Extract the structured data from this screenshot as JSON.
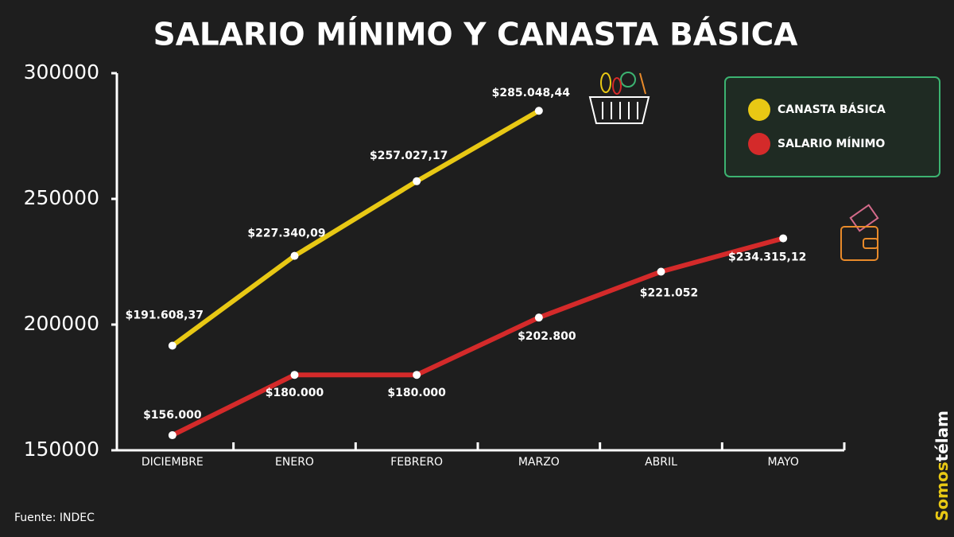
{
  "chart_data": {
    "type": "line",
    "title": "SALARIO MÍNIMO Y CANASTA BÁSICA",
    "categories": [
      "DICIEMBRE",
      "ENERO",
      "FEBRERO",
      "MARZO",
      "ABRIL",
      "MAYO"
    ],
    "series": [
      {
        "name": "CANASTA BÁSICA",
        "color": "#e8c814",
        "values": [
          191608.37,
          227340.09,
          257027.17,
          285048.44,
          null,
          null
        ],
        "value_labels": [
          "$191.608,37",
          "$227.340,09",
          "$257.027,17",
          "$285.048,44",
          null,
          null
        ]
      },
      {
        "name": "SALARIO MÍNIMO",
        "color": "#d42a2a",
        "values": [
          156000,
          180000,
          180000,
          202800,
          221052,
          234315.12
        ],
        "value_labels": [
          "$156.000",
          "$180.000",
          "$180.000",
          "$202.800",
          "$221.052",
          "$234.315,12"
        ]
      }
    ],
    "ylim": [
      150000,
      300000
    ],
    "yticks": [
      150000,
      200000,
      250000,
      300000
    ],
    "source": "Fuente: INDEC",
    "brand": [
      "Somos",
      "télam"
    ]
  }
}
